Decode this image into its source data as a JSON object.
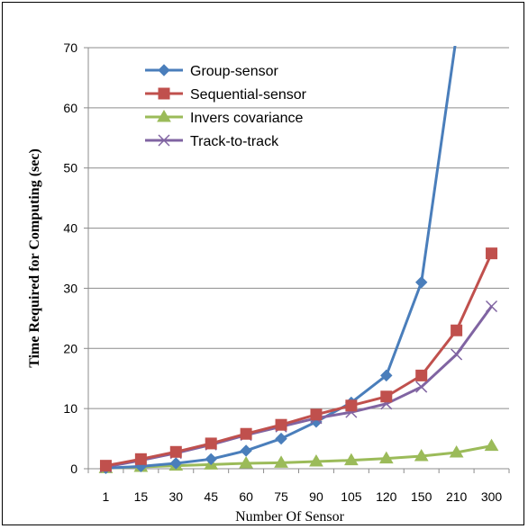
{
  "chart_data": {
    "type": "line",
    "title": "",
    "xlabel": "Number Of Sensor",
    "ylabel": "Time Required for Computing (sec)",
    "categories": [
      "1",
      "15",
      "30",
      "45",
      "60",
      "75",
      "90",
      "105",
      "120",
      "150",
      "210",
      "300"
    ],
    "ylim": [
      0,
      70
    ],
    "yticks": [
      0,
      10,
      20,
      30,
      40,
      50,
      60,
      70
    ],
    "grid": "horizontal",
    "legend_position": "top-left",
    "series": [
      {
        "name": "Group-sensor",
        "color": "#4a7ebb",
        "marker": "diamond",
        "values": [
          0.1,
          0.4,
          0.9,
          1.6,
          3.0,
          5.0,
          7.8,
          11.0,
          15.5,
          31.0,
          72.0,
          null
        ]
      },
      {
        "name": "Sequential-sensor",
        "color": "#c0504d",
        "marker": "square",
        "values": [
          0.5,
          1.6,
          2.8,
          4.2,
          5.8,
          7.3,
          9.0,
          10.5,
          12.0,
          15.5,
          23.0,
          35.8
        ]
      },
      {
        "name": "Invers covariance",
        "color": "#9bbb59",
        "marker": "triangle",
        "values": [
          0.1,
          0.3,
          0.5,
          0.7,
          0.9,
          1.0,
          1.2,
          1.4,
          1.7,
          2.1,
          2.7,
          3.8
        ]
      },
      {
        "name": "Track-to-track",
        "color": "#8064a2",
        "marker": "x",
        "values": [
          0.3,
          1.4,
          2.6,
          4.0,
          5.6,
          7.0,
          8.4,
          9.4,
          10.8,
          13.6,
          19.0,
          27.0
        ]
      }
    ]
  }
}
